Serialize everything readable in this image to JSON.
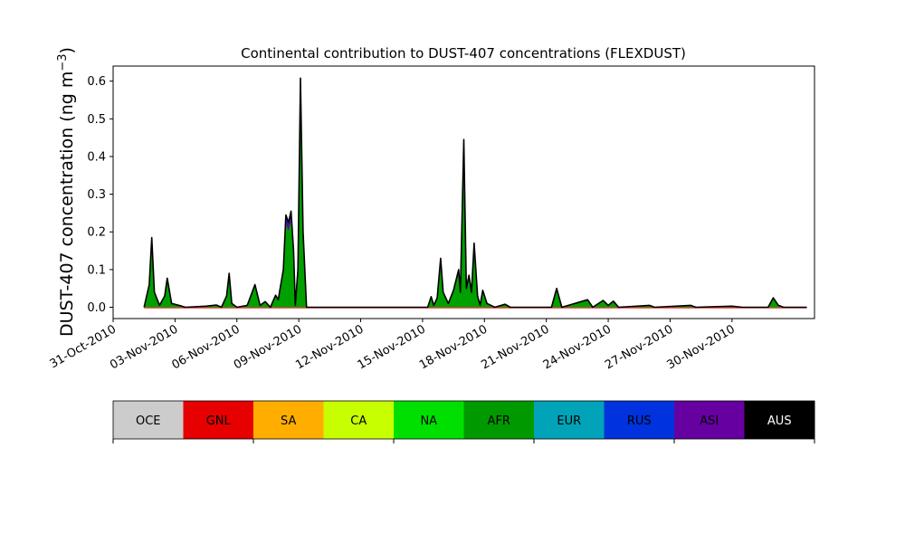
{
  "chart_data": {
    "type": "area",
    "title": "Continental contribution to DUST-407 concentrations (FLEXDUST)",
    "ylabel": "DUST-407 concentration (ng m",
    "ylabel_sup": "−3",
    "ylabel_close": ")",
    "xlabel": "",
    "x_range": [
      "2010-10-31",
      "2010-12-04"
    ],
    "ylim": [
      -0.03,
      0.64
    ],
    "yticks": [
      0.0,
      0.1,
      0.2,
      0.3,
      0.4,
      0.5,
      0.6
    ],
    "ytick_labels": [
      "0.0",
      "0.1",
      "0.2",
      "0.3",
      "0.4",
      "0.5",
      "0.6"
    ],
    "xticks": [
      "2010-10-31",
      "2010-11-03",
      "2010-11-06",
      "2010-11-09",
      "2010-11-12",
      "2010-11-15",
      "2010-11-18",
      "2010-11-21",
      "2010-11-24",
      "2010-11-27",
      "2010-11-30"
    ],
    "xtick_labels": [
      "31-Oct-2010",
      "03-Nov-2010",
      "06-Nov-2010",
      "09-Nov-2010",
      "12-Nov-2010",
      "15-Nov-2010",
      "18-Nov-2010",
      "21-Nov-2010",
      "24-Nov-2010",
      "27-Nov-2010",
      "30-Nov-2010"
    ],
    "series_colors": {
      "AFR": "#00a000",
      "ASI": "#6a00a0",
      "RUS": "#0033d8",
      "total": "#000000"
    },
    "total": [
      [
        "2010-11-01T12:00",
        0.0
      ],
      [
        "2010-11-01T18:00",
        0.06
      ],
      [
        "2010-11-01T21:00",
        0.185
      ],
      [
        "2010-11-02T00:00",
        0.04
      ],
      [
        "2010-11-02T06:00",
        0.005
      ],
      [
        "2010-11-02T12:00",
        0.03
      ],
      [
        "2010-11-02T15:00",
        0.077
      ],
      [
        "2010-11-02T20:00",
        0.01
      ],
      [
        "2010-11-03T06:00",
        0.004
      ],
      [
        "2010-11-03T12:00",
        0.0
      ],
      [
        "2010-11-04T12:00",
        0.003
      ],
      [
        "2010-11-05T00:00",
        0.006
      ],
      [
        "2010-11-05T06:00",
        0.0
      ],
      [
        "2010-11-05T12:00",
        0.03
      ],
      [
        "2010-11-05T15:00",
        0.09
      ],
      [
        "2010-11-05T18:00",
        0.01
      ],
      [
        "2010-11-06T00:00",
        0.0
      ],
      [
        "2010-11-06T12:00",
        0.005
      ],
      [
        "2010-11-06T21:00",
        0.06
      ],
      [
        "2010-11-07T03:00",
        0.005
      ],
      [
        "2010-11-07T09:00",
        0.015
      ],
      [
        "2010-11-07T15:00",
        0.0
      ],
      [
        "2010-11-07T21:00",
        0.032
      ],
      [
        "2010-11-08T00:00",
        0.02
      ],
      [
        "2010-11-08T06:00",
        0.1
      ],
      [
        "2010-11-08T09:00",
        0.245
      ],
      [
        "2010-11-08T12:00",
        0.225
      ],
      [
        "2010-11-08T15:00",
        0.255
      ],
      [
        "2010-11-08T18:00",
        0.15
      ],
      [
        "2010-11-08T20:00",
        0.005
      ],
      [
        "2010-11-08T23:00",
        0.1
      ],
      [
        "2010-11-09T02:00",
        0.608
      ],
      [
        "2010-11-09T05:00",
        0.2
      ],
      [
        "2010-11-09T09:00",
        0.0
      ],
      [
        "2010-11-15T00:00",
        0.0
      ],
      [
        "2010-11-15T06:00",
        0.0
      ],
      [
        "2010-11-15T10:00",
        0.028
      ],
      [
        "2010-11-15T13:00",
        0.005
      ],
      [
        "2010-11-15T17:00",
        0.025
      ],
      [
        "2010-11-15T21:00",
        0.13
      ],
      [
        "2010-11-16T00:00",
        0.04
      ],
      [
        "2010-11-16T06:00",
        0.01
      ],
      [
        "2010-11-16T12:00",
        0.045
      ],
      [
        "2010-11-16T18:00",
        0.1
      ],
      [
        "2010-11-16T20:00",
        0.04
      ],
      [
        "2010-11-17T00:00",
        0.445
      ],
      [
        "2010-11-17T03:00",
        0.05
      ],
      [
        "2010-11-17T06:00",
        0.085
      ],
      [
        "2010-11-17T09:00",
        0.04
      ],
      [
        "2010-11-17T12:00",
        0.17
      ],
      [
        "2010-11-17T16:00",
        0.03
      ],
      [
        "2010-11-17T19:00",
        0.005
      ],
      [
        "2010-11-17T22:00",
        0.045
      ],
      [
        "2010-11-18T03:00",
        0.01
      ],
      [
        "2010-11-18T12:00",
        0.0
      ],
      [
        "2010-11-19T00:00",
        0.008
      ],
      [
        "2010-11-19T06:00",
        0.0
      ],
      [
        "2010-11-21T06:00",
        0.0
      ],
      [
        "2010-11-21T12:00",
        0.05
      ],
      [
        "2010-11-21T18:00",
        0.0
      ],
      [
        "2010-11-23T00:00",
        0.02
      ],
      [
        "2010-11-23T06:00",
        0.0
      ],
      [
        "2010-11-23T18:00",
        0.018
      ],
      [
        "2010-11-24T00:00",
        0.005
      ],
      [
        "2010-11-24T06:00",
        0.016
      ],
      [
        "2010-11-24T12:00",
        0.0
      ],
      [
        "2010-11-26T00:00",
        0.005
      ],
      [
        "2010-11-26T06:00",
        0.0
      ],
      [
        "2010-11-28T00:00",
        0.005
      ],
      [
        "2010-11-28T06:00",
        0.0
      ],
      [
        "2010-11-30T00:00",
        0.003
      ],
      [
        "2010-11-30T12:00",
        0.0
      ],
      [
        "2010-12-01T18:00",
        0.0
      ],
      [
        "2010-12-02T00:00",
        0.025
      ],
      [
        "2010-12-02T06:00",
        0.005
      ],
      [
        "2010-12-02T12:00",
        0.0
      ],
      [
        "2010-12-03T15:00",
        0.0
      ]
    ],
    "afr_fraction": 0.9,
    "asi_fraction": 0.06
  },
  "legend": {
    "entries": [
      {
        "label": "OCE",
        "color": "#cccccc",
        "text_color": "#000000"
      },
      {
        "label": "GNL",
        "color": "#e60000",
        "text_color": "#000000"
      },
      {
        "label": "SA",
        "color": "#ffae00",
        "text_color": "#000000"
      },
      {
        "label": "CA",
        "color": "#c8ff00",
        "text_color": "#000000"
      },
      {
        "label": "NA",
        "color": "#00e000",
        "text_color": "#000000"
      },
      {
        "label": "AFR",
        "color": "#009a00",
        "text_color": "#000000"
      },
      {
        "label": "EUR",
        "color": "#00a3b8",
        "text_color": "#000000"
      },
      {
        "label": "RUS",
        "color": "#0033dd",
        "text_color": "#000000"
      },
      {
        "label": "ASI",
        "color": "#6600a0",
        "text_color": "#000000"
      },
      {
        "label": "AUS",
        "color": "#000000",
        "text_color": "#ffffff"
      }
    ]
  }
}
